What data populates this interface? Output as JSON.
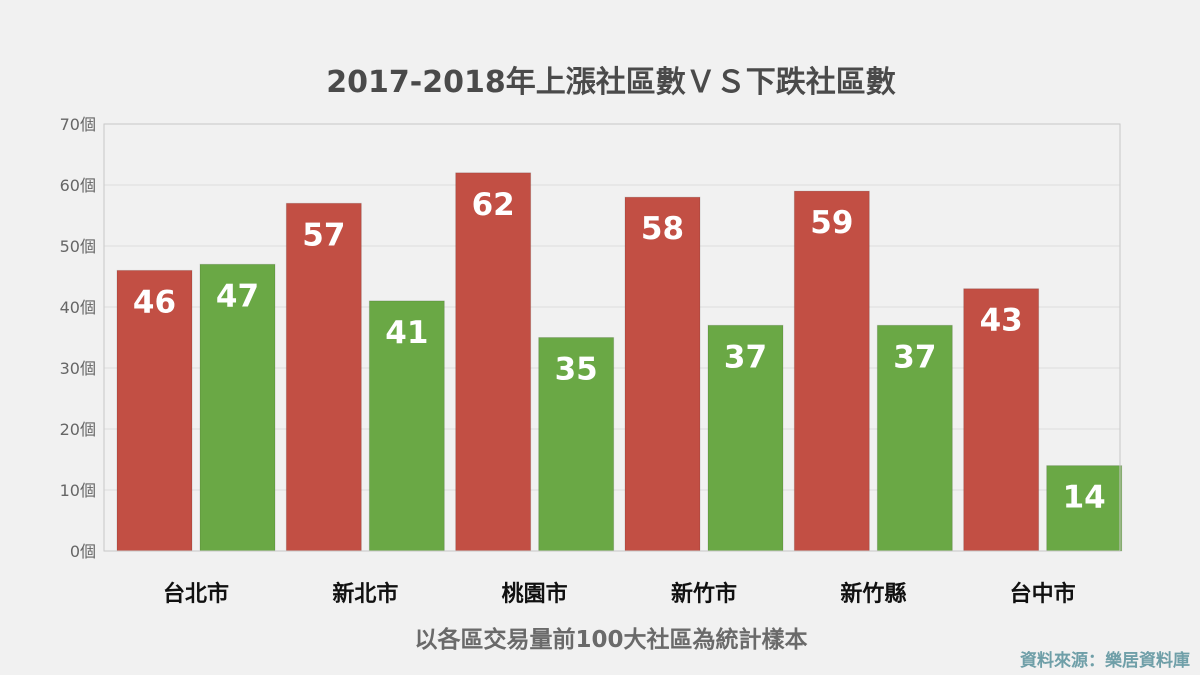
{
  "chart_data": {
    "type": "bar",
    "title": "2017-2018年上漲社區數ＶＳ下跌社區數",
    "categories": [
      "台北市",
      "新北市",
      "桃園市",
      "新竹市",
      "新竹縣",
      "台中市"
    ],
    "series": [
      {
        "color": "#c24f44",
        "values": [
          46,
          57,
          62,
          58,
          59,
          43
        ]
      },
      {
        "color": "#6aa845",
        "values": [
          47,
          41,
          35,
          37,
          37,
          14
        ]
      }
    ],
    "xlabel": "以各區交易量前100大社區為統計樣本",
    "ylabel": "",
    "ylim": [
      0,
      70
    ],
    "yticks": [
      0,
      10,
      20,
      30,
      40,
      50,
      60,
      70
    ],
    "ytick_suffix": "個",
    "grid": true,
    "source": "資料來源：樂居資料庫"
  },
  "colors": {
    "background": "#f1f1f1",
    "plot_border": "#c8c8c8",
    "grid": "#dddddd"
  }
}
